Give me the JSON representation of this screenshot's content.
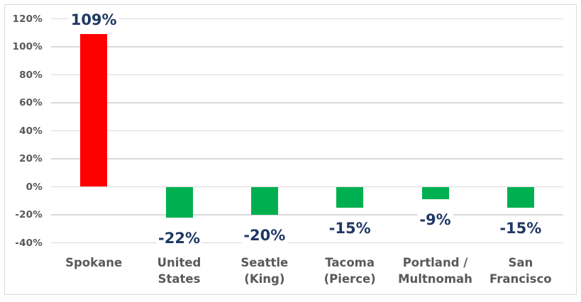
{
  "chart_data": {
    "type": "bar",
    "title": "",
    "xlabel": "",
    "ylabel": "",
    "categories": [
      "Spokane",
      "United States",
      "Seattle (King)",
      "Tacoma (Pierce)",
      "Portland / Multnomah",
      "San Francisco"
    ],
    "category_lines": [
      [
        "Spokane"
      ],
      [
        "United",
        "States"
      ],
      [
        "Seattle",
        "(King)"
      ],
      [
        "Tacoma",
        "(Pierce)"
      ],
      [
        "Portland /",
        "Multnomah"
      ],
      [
        "San",
        "Francisco"
      ]
    ],
    "values": [
      109,
      -22,
      -20,
      -15,
      -9,
      -15
    ],
    "data_labels": [
      "109%",
      "-22%",
      "-20%",
      "-15%",
      "-9%",
      "-15%"
    ],
    "bar_colors": [
      "#ff0000",
      "#00b050",
      "#00b050",
      "#00b050",
      "#00b050",
      "#00b050"
    ],
    "yticks": [
      120,
      100,
      80,
      60,
      40,
      20,
      0,
      -20,
      -40
    ],
    "ytick_labels": [
      "120%",
      "100%",
      "80%",
      "60%",
      "40%",
      "20%",
      "0%",
      "-20%",
      "-40%"
    ],
    "ylim": [
      -40,
      120
    ],
    "grid": true,
    "legend": "none",
    "colors": {
      "positive_bar": "#ff0000",
      "negative_bar": "#00b050",
      "data_label": "#1f3864",
      "axis_label": "#595959",
      "gridline": "#d9d9d9",
      "border": "#d9d9d9",
      "background": "#ffffff"
    }
  }
}
